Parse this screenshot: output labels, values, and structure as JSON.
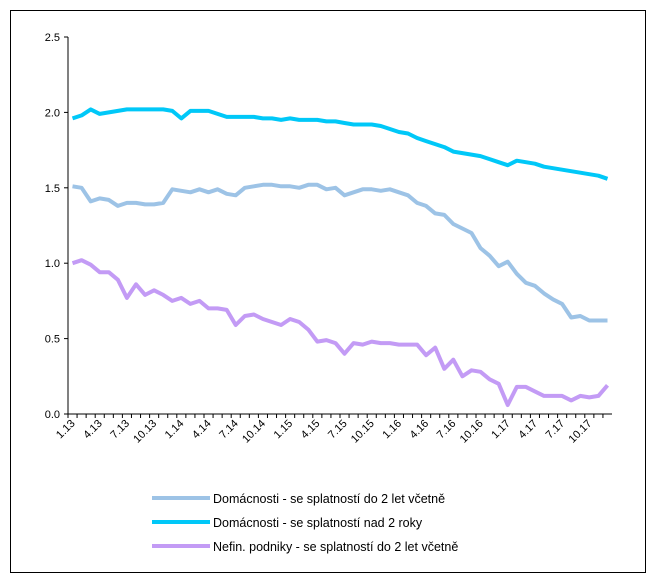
{
  "chart_data": {
    "type": "line",
    "categories": [
      "1.13",
      null,
      null,
      "4.13",
      null,
      null,
      "7.13",
      null,
      null,
      "10.13",
      null,
      null,
      "1.14",
      null,
      null,
      "4.14",
      null,
      null,
      "7.14",
      null,
      null,
      "10.14",
      null,
      null,
      "1.15",
      null,
      null,
      "4.15",
      null,
      null,
      "7.15",
      null,
      null,
      "10.15",
      null,
      null,
      "1.16",
      null,
      null,
      "4.16",
      null,
      null,
      "7.16",
      null,
      null,
      "10.16",
      null,
      null,
      "1.17",
      null,
      null,
      "4.17",
      null,
      null,
      "7.17",
      null,
      null,
      "10.17",
      null,
      null
    ],
    "series": [
      {
        "name": "Domácnosti - se splatností do 2 let včetně",
        "color": "#9dc3e6",
        "values": [
          1.51,
          1.5,
          1.41,
          1.43,
          1.42,
          1.38,
          1.4,
          1.4,
          1.39,
          1.39,
          1.4,
          1.49,
          1.48,
          1.47,
          1.49,
          1.47,
          1.49,
          1.46,
          1.45,
          1.5,
          1.51,
          1.52,
          1.52,
          1.51,
          1.51,
          1.5,
          1.52,
          1.52,
          1.49,
          1.5,
          1.45,
          1.47,
          1.49,
          1.49,
          1.48,
          1.49,
          1.47,
          1.45,
          1.4,
          1.38,
          1.33,
          1.32,
          1.26,
          1.23,
          1.2,
          1.1,
          1.05,
          0.98,
          1.01,
          0.93,
          0.87,
          0.85,
          0.8,
          0.76,
          0.73,
          0.64,
          0.65,
          0.62,
          0.62,
          0.62
        ]
      },
      {
        "name": "Domácnosti - se splatností nad 2 roky",
        "color": "#00c8f8",
        "values": [
          1.96,
          1.98,
          2.02,
          1.99,
          2.0,
          2.01,
          2.02,
          2.02,
          2.02,
          2.02,
          2.02,
          2.01,
          1.96,
          2.01,
          2.01,
          2.01,
          1.99,
          1.97,
          1.97,
          1.97,
          1.97,
          1.96,
          1.96,
          1.95,
          1.96,
          1.95,
          1.95,
          1.95,
          1.94,
          1.94,
          1.93,
          1.92,
          1.92,
          1.92,
          1.91,
          1.89,
          1.87,
          1.86,
          1.83,
          1.81,
          1.79,
          1.77,
          1.74,
          1.73,
          1.72,
          1.71,
          1.69,
          1.67,
          1.65,
          1.68,
          1.67,
          1.66,
          1.64,
          1.63,
          1.62,
          1.61,
          1.6,
          1.59,
          1.58,
          1.56
        ]
      },
      {
        "name": "Nefin. podniky - se splatností do 2 let včetně",
        "color": "#c39bf5",
        "values": [
          1.0,
          1.02,
          0.99,
          0.94,
          0.94,
          0.89,
          0.77,
          0.86,
          0.79,
          0.82,
          0.79,
          0.75,
          0.77,
          0.73,
          0.75,
          0.7,
          0.7,
          0.69,
          0.59,
          0.65,
          0.66,
          0.63,
          0.61,
          0.59,
          0.63,
          0.61,
          0.56,
          0.48,
          0.49,
          0.47,
          0.4,
          0.47,
          0.46,
          0.48,
          0.47,
          0.47,
          0.46,
          0.46,
          0.46,
          0.39,
          0.44,
          0.3,
          0.36,
          0.25,
          0.29,
          0.28,
          0.23,
          0.2,
          0.06,
          0.18,
          0.18,
          0.15,
          0.12,
          0.12,
          0.12,
          0.09,
          0.12,
          0.11,
          0.12,
          0.19
        ]
      }
    ],
    "ylim": [
      0,
      2.5
    ],
    "yticks": [
      {
        "value": 0,
        "label": "0.0"
      },
      0.5,
      {
        "value": 1,
        "label": "1.0"
      },
      1.5,
      {
        "value": 2,
        "label": "2.0"
      },
      2.5
    ],
    "grid": false,
    "legend": "bottom"
  }
}
